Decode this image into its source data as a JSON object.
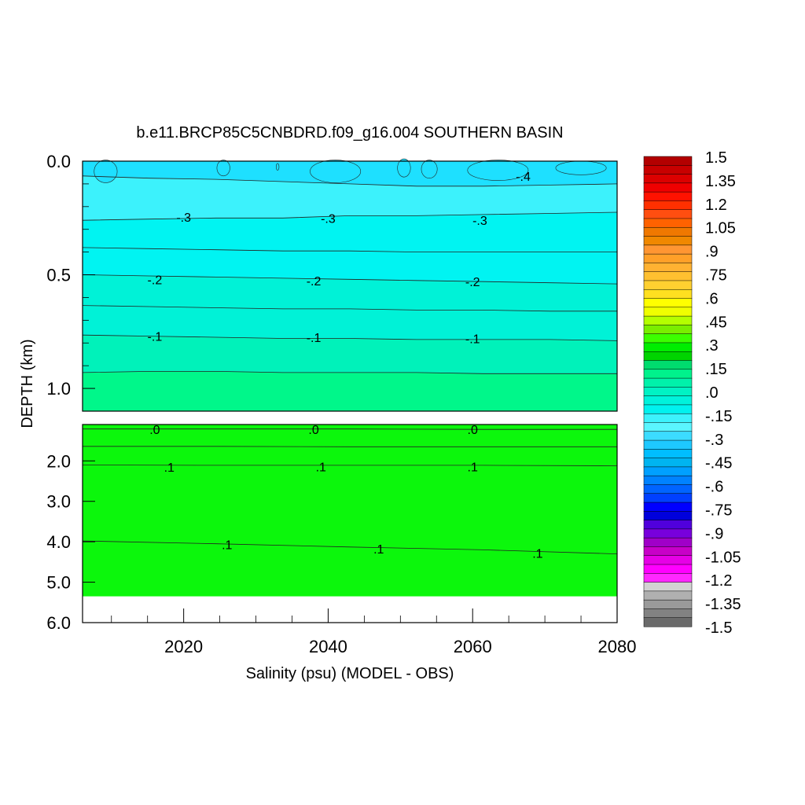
{
  "chart_data": {
    "type": "heatmap",
    "title": "b.e11.BRCP85C5CNBDRD.f09_g16.004 SOUTHERN BASIN",
    "xlabel": "Salinity (psu) (MODEL - OBS)",
    "ylabel": "DEPTH (km)",
    "x_ticks": [
      "2020",
      "2040",
      "2060",
      "2080"
    ],
    "xlim": [
      2006,
      2080
    ],
    "upper_panel": {
      "ylim": [
        0.0,
        1.1
      ],
      "y_ticks": [
        "0.0",
        "0.5",
        "1.0"
      ],
      "contours": [
        {
          "label": "-.4",
          "depths": [
            0.065,
            0.075,
            0.08,
            0.09,
            0.1,
            0.11,
            0.11,
            0.105,
            0.1
          ],
          "label_at": [
            [
              2067,
              0.065
            ]
          ]
        },
        {
          "label": "-.3",
          "depths": [
            0.26,
            0.255,
            0.25,
            0.25,
            0.24,
            0.24,
            0.235,
            0.23,
            0.225
          ],
          "label_at": [
            [
              2020,
              0.245
            ],
            [
              2040,
              0.25
            ],
            [
              2061,
              0.26
            ]
          ]
        },
        {
          "label": "",
          "depths": [
            0.38,
            0.385,
            0.39,
            0.395,
            0.395,
            0.4,
            0.4,
            0.4,
            0.4
          ]
        },
        {
          "label": "-.2",
          "depths": [
            0.5,
            0.505,
            0.51,
            0.515,
            0.52,
            0.525,
            0.53,
            0.535,
            0.54
          ],
          "label_at": [
            [
              2016,
              0.52
            ],
            [
              2038,
              0.525
            ],
            [
              2060,
              0.53
            ]
          ]
        },
        {
          "label": "",
          "depths": [
            0.635,
            0.64,
            0.645,
            0.65,
            0.65,
            0.655,
            0.655,
            0.66,
            0.66
          ]
        },
        {
          "label": "-.1",
          "depths": [
            0.765,
            0.77,
            0.775,
            0.78,
            0.78,
            0.785,
            0.785,
            0.785,
            0.79
          ],
          "label_at": [
            [
              2016,
              0.77
            ],
            [
              2038,
              0.775
            ],
            [
              2060,
              0.78
            ]
          ]
        },
        {
          "label": "",
          "depths": [
            0.93,
            0.925,
            0.925,
            0.93,
            0.93,
            0.93,
            0.935,
            0.935,
            0.935
          ]
        }
      ],
      "bands": [
        {
          "from": 0.0,
          "to": "c0",
          "color": "#1ee0ff"
        },
        {
          "from": "c0",
          "to": "c1",
          "color": "#3cf2fc"
        },
        {
          "from": "c1",
          "to": "c3",
          "color": "#00f4f2"
        },
        {
          "from": "c3",
          "to": "c5",
          "color": "#00f2d7"
        },
        {
          "from": "c5",
          "to": "c6",
          "color": "#00f2ba"
        },
        {
          "from": "c6",
          "to": 1.1,
          "color": "#00f78a"
        }
      ],
      "blobs": [
        {
          "x": 2009.2,
          "y": 0.045,
          "rx": 1.6,
          "ry": 0.05
        },
        {
          "x": 2025.5,
          "y": 0.03,
          "rx": 0.9,
          "ry": 0.035
        },
        {
          "x": 2033.0,
          "y": 0.025,
          "rx": 0.2,
          "ry": 0.015
        },
        {
          "x": 2041.0,
          "y": 0.045,
          "rx": 3.5,
          "ry": 0.05
        },
        {
          "x": 2050.5,
          "y": 0.03,
          "rx": 0.9,
          "ry": 0.04
        },
        {
          "x": 2054.0,
          "y": 0.035,
          "rx": 1.1,
          "ry": 0.04
        },
        {
          "x": 2063.5,
          "y": 0.04,
          "rx": 4.2,
          "ry": 0.045
        },
        {
          "x": 2075.0,
          "y": 0.03,
          "rx": 3.5,
          "ry": 0.03
        }
      ]
    },
    "lower_panel": {
      "ylim": [
        1.1,
        6.0
      ],
      "y_ticks": [
        "2.0",
        "3.0",
        "4.0",
        "5.0",
        "6.0"
      ],
      "bottom_depth": 5.35,
      "fill_color": "#0cf70c",
      "contours": [
        {
          "label": ".0",
          "depths": [
            1.21,
            1.21,
            1.21,
            1.22,
            1.22
          ],
          "label_at": [
            [
              2016,
              1.22
            ],
            [
              2038,
              1.22
            ],
            [
              2060,
              1.22
            ]
          ]
        },
        {
          "label": "",
          "depths": [
            1.64,
            1.64,
            1.65,
            1.65,
            1.65
          ]
        },
        {
          "label": ".1",
          "depths": [
            2.1,
            2.11,
            2.11,
            2.11,
            2.12
          ],
          "label_at": [
            [
              2018,
              2.15
            ],
            [
              2039,
              2.14
            ],
            [
              2060,
              2.14
            ]
          ]
        },
        {
          "label": ".1",
          "depths": [
            3.98,
            4.05,
            4.13,
            4.2,
            4.3
          ],
          "label_at": [
            [
              2026,
              4.07
            ],
            [
              2047,
              4.17
            ],
            [
              2069,
              4.28
            ]
          ]
        }
      ]
    },
    "colorbar": {
      "labels": [
        "1.5",
        "1.35",
        "1.2",
        "1.05",
        ".9",
        ".75",
        ".6",
        ".45",
        ".3",
        ".15",
        ".0",
        "-.15",
        "-.3",
        "-.45",
        "-.6",
        "-.75",
        "-.9",
        "-1.05",
        "-1.2",
        "-1.35",
        "-1.5"
      ],
      "colors": [
        "#b30000",
        "#c80000",
        "#dc0000",
        "#f00000",
        "#ff1200",
        "#ff3000",
        "#ff4e10",
        "#ff6200",
        "#f07800",
        "#f08800",
        "#ff9632",
        "#ffa028",
        "#ffb232",
        "#ffc030",
        "#ffd030",
        "#ffe020",
        "#ffff00",
        "#f0ff00",
        "#b4ff00",
        "#7aee00",
        "#3cff00",
        "#00ee00",
        "#00d400",
        "#00dc6e",
        "#00f28c",
        "#00f2aa",
        "#00f2c4",
        "#00f2dc",
        "#00f2ef",
        "#3cf2fc",
        "#5af5ff",
        "#3cdcff",
        "#1ec8ff",
        "#00beff",
        "#00b4f0",
        "#00a0ff",
        "#0082ff",
        "#0064ff",
        "#0040ff",
        "#0000ff",
        "#0000dc",
        "#5000dc",
        "#7800dc",
        "#a000c8",
        "#c800c8",
        "#e600e6",
        "#ff00ff",
        "#ff28ff",
        "#d2d2d2",
        "#b0b0b0",
        "#9a9a9a",
        "#828282",
        "#6a6a6a"
      ]
    }
  }
}
